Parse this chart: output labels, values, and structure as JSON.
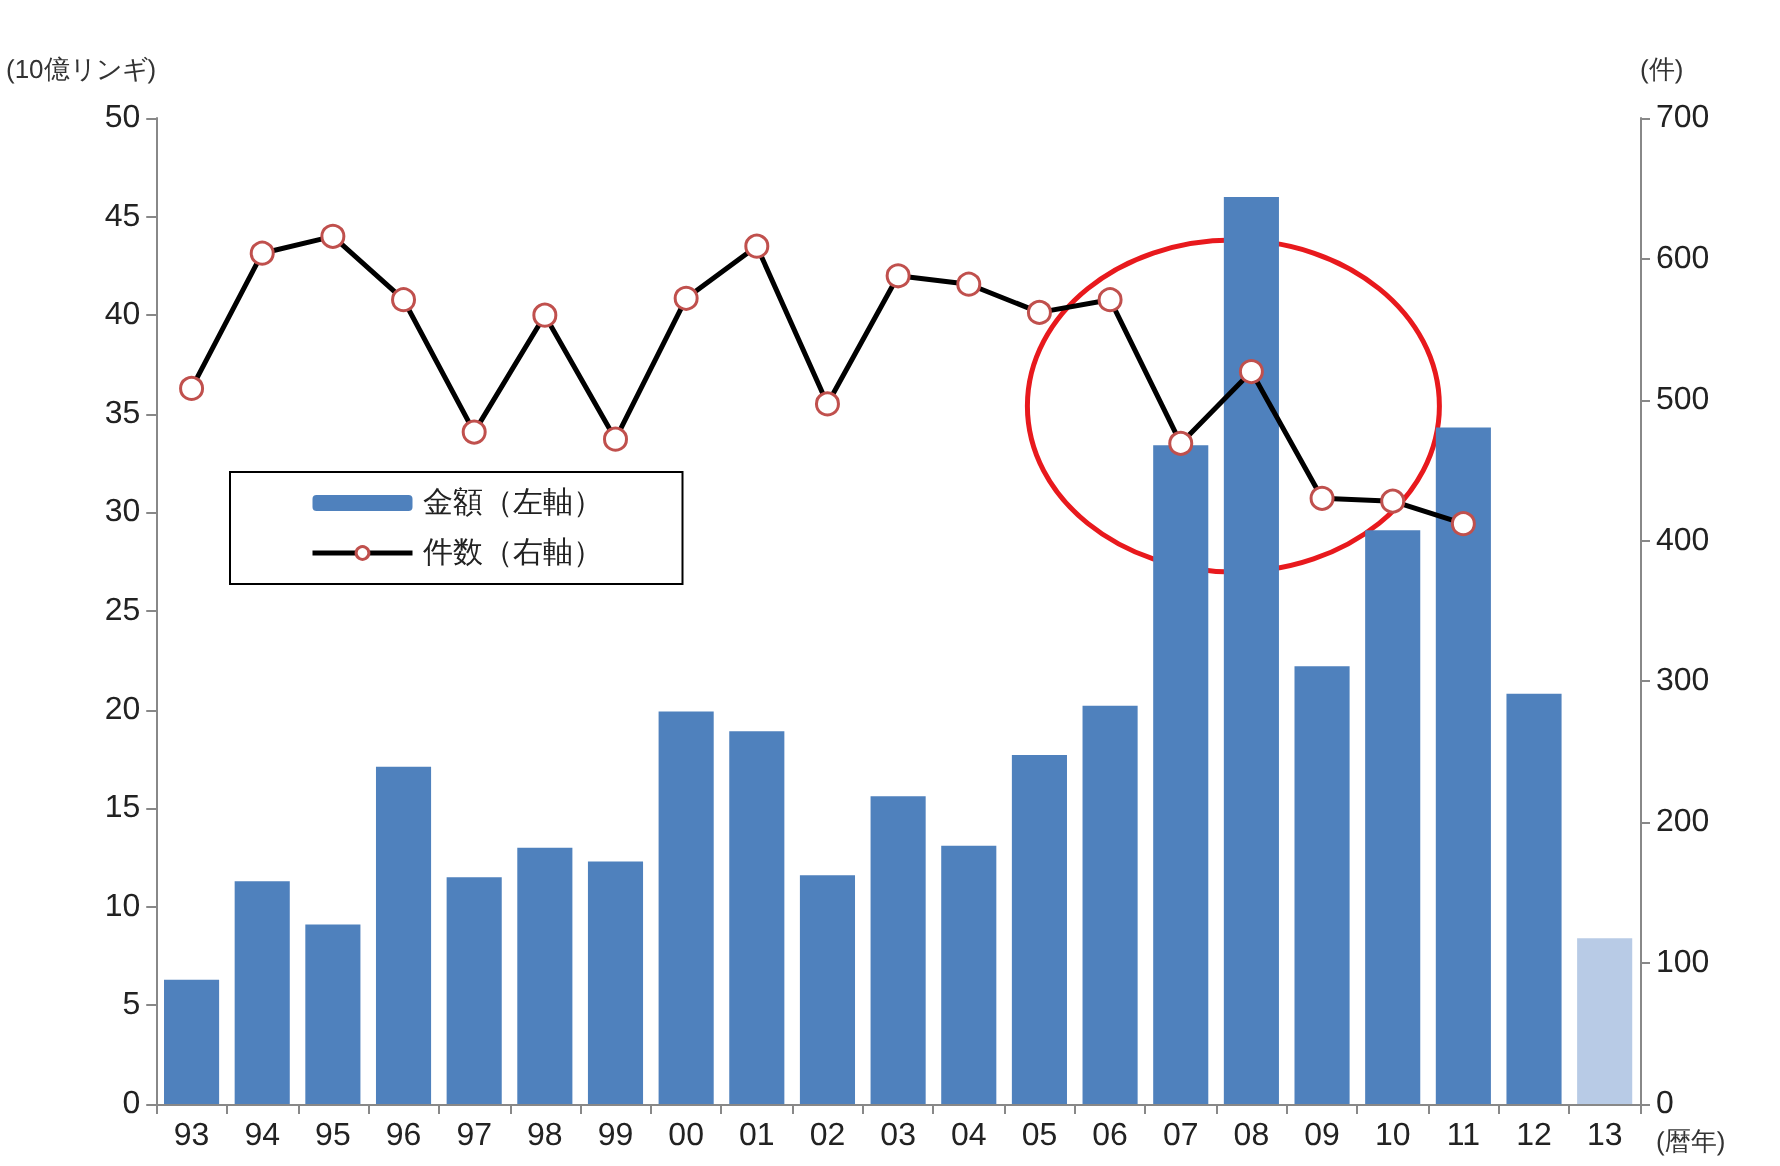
{
  "chart_data": {
    "type": "bar",
    "ylabel": "(10億リンギ)",
    "y2label": "(件)",
    "xlabel": "(暦年)",
    "categories": [
      "93",
      "94",
      "95",
      "96",
      "97",
      "98",
      "99",
      "00",
      "01",
      "02",
      "03",
      "04",
      "05",
      "06",
      "07",
      "08",
      "09",
      "10",
      "11",
      "12",
      "13"
    ],
    "series": [
      {
        "name": "金額（左軸）",
        "color": "#4f81bd",
        "colors": [
          "#4f81bd",
          "#4f81bd",
          "#4f81bd",
          "#4f81bd",
          "#4f81bd",
          "#4f81bd",
          "#4f81bd",
          "#4f81bd",
          "#4f81bd",
          "#4f81bd",
          "#4f81bd",
          "#4f81bd",
          "#4f81bd",
          "#4f81bd",
          "#4f81bd",
          "#4f81bd",
          "#4f81bd",
          "#4f81bd",
          "#4f81bd",
          "#4f81bd",
          "#b8cbe6"
        ],
        "values": [
          6.3,
          11.3,
          9.1,
          17.1,
          11.5,
          13.0,
          12.3,
          19.9,
          18.9,
          11.6,
          15.6,
          13.1,
          17.7,
          20.2,
          33.4,
          46.0,
          22.2,
          29.1,
          34.3,
          20.8,
          8.4
        ]
      },
      {
        "name": "件数（右軸）",
        "type": "line",
        "axis": "y2",
        "color": "#000000",
        "marker": "circle",
        "values": [
          508,
          604,
          616,
          571,
          477,
          560,
          472,
          572,
          609,
          497,
          588,
          582,
          562,
          571,
          469,
          520,
          430,
          428,
          412,
          null,
          null
        ]
      }
    ],
    "ylim": [
      0,
      50
    ],
    "yticks": [
      0,
      5,
      10,
      15,
      20,
      25,
      30,
      35,
      40,
      45,
      50
    ],
    "y2lim": [
      0,
      700
    ],
    "y2ticks": [
      0,
      100,
      200,
      300,
      400,
      500,
      600,
      700
    ],
    "grid": false,
    "legend": "left"
  }
}
